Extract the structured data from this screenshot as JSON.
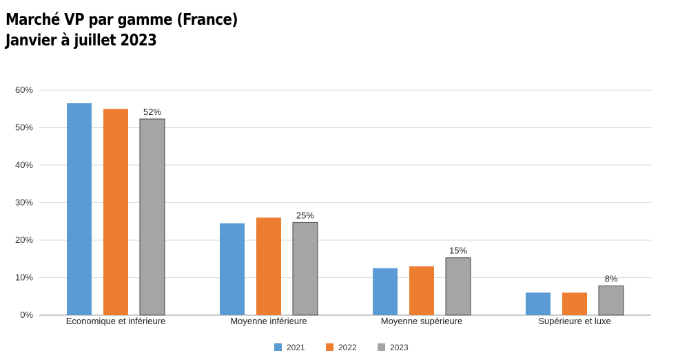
{
  "title_lines": [
    "Marché VP par gamme (France)",
    "Janvier à juillet 2023"
  ],
  "chart_data": {
    "type": "bar",
    "title": "Marché VP par gamme (France) Janvier à juillet 2023",
    "categories": [
      "Economique et inférieure",
      "Moyenne inférieure",
      "Moyenne supérieure",
      "Supérieure et luxe"
    ],
    "series": [
      {
        "name": "2021",
        "color": "#5b9bd5",
        "values": [
          56.5,
          24.5,
          12.5,
          6.0
        ]
      },
      {
        "name": "2022",
        "color": "#ed7d31",
        "values": [
          55.0,
          26.0,
          13.0,
          6.0
        ]
      },
      {
        "name": "2023",
        "color": "#a5a5a5",
        "values": [
          52.3,
          24.7,
          15.3,
          7.8
        ]
      }
    ],
    "data_labels": {
      "series": "2023",
      "labels": [
        "52%",
        "25%",
        "15%",
        "8%"
      ]
    },
    "yticks": [
      "0%",
      "10%",
      "20%",
      "30%",
      "40%",
      "50%",
      "60%"
    ],
    "ylim": [
      0,
      60
    ],
    "grid": true,
    "legend_position": "bottom"
  }
}
